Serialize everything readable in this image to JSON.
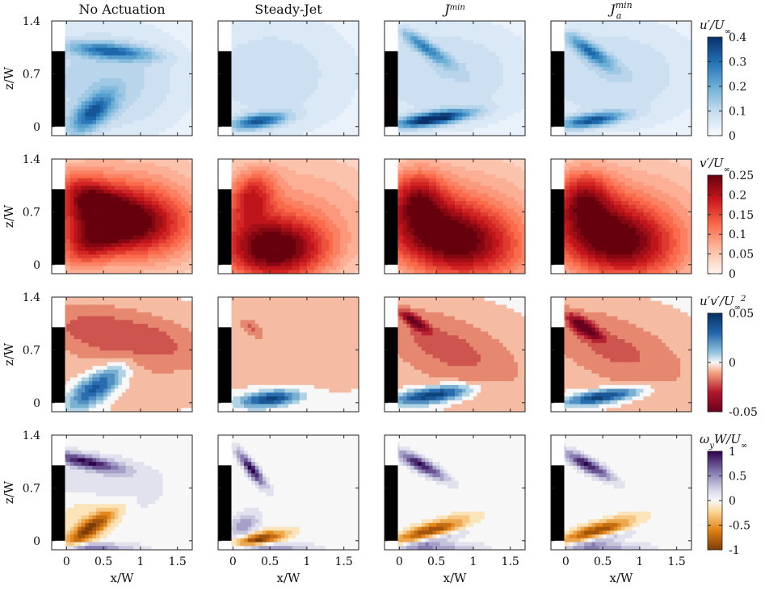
{
  "chart_data": {
    "type": "heatmap",
    "columns": [
      "No Actuation",
      "Steady-Jet",
      "J^min",
      "J_a^min"
    ],
    "column_titles": [
      {
        "text": "No Actuation"
      },
      {
        "text": "Steady-Jet"
      },
      {
        "base": "J",
        "sup": "min"
      },
      {
        "base": "J",
        "sup": "min",
        "sub": "a"
      }
    ],
    "xlabel": "x/W",
    "ylabel": "z/W",
    "xlim": [
      -0.2,
      1.7
    ],
    "ylim": [
      -0.12,
      1.4
    ],
    "xticks": [
      0,
      0.5,
      1,
      1.5
    ],
    "xtick_labels": [
      "0",
      "0.5",
      "1",
      "1.5"
    ],
    "yticks": [
      0,
      0.7,
      1.4
    ],
    "ytick_labels": [
      "0",
      "0.7",
      "1.4"
    ],
    "rows": [
      {
        "quantity": "u'/U_inf",
        "label": {
          "main": "u′/U",
          "sub": "∞"
        },
        "colormap": "blues",
        "clim": [
          0,
          0.4
        ],
        "cbar_ticks": [
          0,
          0.1,
          0.2,
          0.3,
          0.4
        ],
        "cbar_labels": [
          "0",
          "0.1",
          "0.2",
          "0.3",
          "0.4"
        ]
      },
      {
        "quantity": "v'/U_inf",
        "label": {
          "main": "v′/U",
          "sub": "∞"
        },
        "colormap": "reds",
        "clim": [
          0,
          0.25
        ],
        "cbar_ticks": [
          0,
          0.05,
          0.1,
          0.15,
          0.2,
          0.25
        ],
        "cbar_labels": [
          "0",
          "0.05",
          "0.1",
          "0.15",
          "0.2",
          "0.25"
        ]
      },
      {
        "quantity": "u'v'/U_inf^2",
        "label": {
          "main": "u′v′/U",
          "sub": "∞",
          "sup": "2"
        },
        "colormap": "red-blue diverging",
        "clim": [
          -0.05,
          0.05
        ],
        "cbar_ticks": [
          -0.05,
          0,
          0.05
        ],
        "cbar_labels": [
          "-0.05",
          "0",
          "0.05"
        ]
      },
      {
        "quantity": "omega_y W/U_inf",
        "label": {
          "main": "ω",
          "sub1": "y",
          "mid": "W/U",
          "sub": "∞"
        },
        "colormap": "orange-purple diverging",
        "clim": [
          -1,
          1
        ],
        "cbar_ticks": [
          -1,
          -0.5,
          0,
          0.5,
          1
        ],
        "cbar_labels": [
          "-1",
          "-0.5",
          "0",
          "0.5",
          "1"
        ]
      }
    ],
    "body": {
      "x": [
        -0.2,
        -0.02
      ],
      "z": [
        0,
        1.0
      ]
    },
    "features": [
      [
        [
          {
            "x": 0.6,
            "z": 1.0,
            "sx": 0.38,
            "sz": 0.07,
            "a": 0.24,
            "r": -0.1
          },
          {
            "x": 0.35,
            "z": 0.18,
            "sx": 0.25,
            "sz": 0.12,
            "a": 0.26,
            "r": 0.7
          },
          {
            "x": 0.5,
            "z": 0.6,
            "sx": 0.9,
            "sz": 0.6,
            "a": 0.12,
            "r": 0
          }
        ],
        [
          {
            "x": 0.35,
            "z": 0.07,
            "sx": 0.25,
            "sz": 0.065,
            "a": 0.3,
            "r": 0.15
          },
          {
            "x": 0.5,
            "z": 0.7,
            "sx": 1.0,
            "sz": 0.7,
            "a": 0.09,
            "r": 0
          }
        ],
        [
          {
            "x": 0.45,
            "z": 0.1,
            "sx": 0.35,
            "sz": 0.06,
            "a": 0.4,
            "r": 0.15
          },
          {
            "x": 0.35,
            "z": 1.05,
            "sx": 0.28,
            "sz": 0.06,
            "a": 0.2,
            "r": -0.6
          },
          {
            "x": 0.6,
            "z": 0.7,
            "sx": 1.0,
            "sz": 0.6,
            "a": 0.1,
            "r": 0
          }
        ],
        [
          {
            "x": 0.35,
            "z": 0.08,
            "sx": 0.3,
            "sz": 0.06,
            "a": 0.3,
            "r": 0.15
          },
          {
            "x": 0.32,
            "z": 1.0,
            "sx": 0.25,
            "sz": 0.07,
            "a": 0.23,
            "r": -0.6
          },
          {
            "x": 0.6,
            "z": 0.7,
            "sx": 1.0,
            "sz": 0.6,
            "a": 0.1,
            "r": 0
          }
        ]
      ],
      [
        [
          {
            "x": 0.75,
            "z": 0.58,
            "sx": 0.55,
            "sz": 0.3,
            "a": 0.2,
            "r": -0.1
          },
          {
            "x": 0.3,
            "z": 0.9,
            "sx": 0.3,
            "sz": 0.18,
            "a": 0.1,
            "r": -0.5
          },
          {
            "x": 0.3,
            "z": 0.25,
            "sx": 0.3,
            "sz": 0.18,
            "a": 0.09,
            "r": 0.5
          },
          {
            "x": 0.8,
            "z": 0.7,
            "sx": 1.2,
            "sz": 0.7,
            "a": 0.09,
            "r": 0
          }
        ],
        [
          {
            "x": 0.55,
            "z": 0.2,
            "sx": 0.5,
            "sz": 0.3,
            "a": 0.22,
            "r": 0
          },
          {
            "x": 0.25,
            "z": 0.9,
            "sx": 0.2,
            "sz": 0.25,
            "a": 0.12,
            "r": -0.6
          },
          {
            "x": 0.8,
            "z": 0.7,
            "sx": 1.2,
            "sz": 0.7,
            "a": 0.08,
            "r": 0
          }
        ],
        [
          {
            "x": 0.7,
            "z": 0.32,
            "sx": 0.65,
            "sz": 0.35,
            "a": 0.21,
            "r": -0.2
          },
          {
            "x": 0.25,
            "z": 0.9,
            "sx": 0.25,
            "sz": 0.25,
            "a": 0.12,
            "r": -0.6
          },
          {
            "x": 0.8,
            "z": 0.7,
            "sx": 1.2,
            "sz": 0.7,
            "a": 0.08,
            "r": 0
          }
        ],
        [
          {
            "x": 0.65,
            "z": 0.32,
            "sx": 0.6,
            "sz": 0.35,
            "a": 0.21,
            "r": -0.2
          },
          {
            "x": 0.25,
            "z": 0.9,
            "sx": 0.25,
            "sz": 0.25,
            "a": 0.12,
            "r": -0.6
          },
          {
            "x": 0.8,
            "z": 0.7,
            "sx": 1.2,
            "sz": 0.7,
            "a": 0.08,
            "r": 0
          }
        ]
      ],
      [
        [
          {
            "x": 0.7,
            "z": 0.9,
            "sx": 0.9,
            "sz": 0.25,
            "a": -0.018,
            "r": -0.2
          },
          {
            "x": 0.4,
            "z": 0.2,
            "sx": 0.3,
            "sz": 0.12,
            "a": 0.04,
            "r": 0.6
          },
          {
            "x": 0.8,
            "z": 0.6,
            "sx": 1.2,
            "sz": 0.7,
            "a": -0.007,
            "r": 0
          }
        ],
        [
          {
            "x": 0.5,
            "z": 0.05,
            "sx": 0.27,
            "sz": 0.07,
            "a": 0.045,
            "r": 0.1
          },
          {
            "x": 0.8,
            "z": 0.8,
            "sx": 1.2,
            "sz": 0.6,
            "a": -0.008,
            "r": 0
          },
          {
            "x": 0.25,
            "z": 1.0,
            "sx": 0.12,
            "sz": 0.06,
            "a": -0.012,
            "r": -0.6
          }
        ],
        [
          {
            "x": 0.45,
            "z": 0.1,
            "sx": 0.35,
            "sz": 0.07,
            "a": 0.05,
            "r": 0.15
          },
          {
            "x": 0.2,
            "z": 1.08,
            "sx": 0.15,
            "sz": 0.05,
            "a": -0.04,
            "r": -0.6
          },
          {
            "x": 0.6,
            "z": 0.75,
            "sx": 0.8,
            "sz": 0.3,
            "a": -0.015,
            "r": -0.4
          },
          {
            "x": 0.8,
            "z": 0.6,
            "sx": 1.2,
            "sz": 0.7,
            "a": -0.006,
            "r": 0
          }
        ],
        [
          {
            "x": 0.5,
            "z": 0.08,
            "sx": 0.35,
            "sz": 0.06,
            "a": 0.048,
            "r": 0.15
          },
          {
            "x": 0.25,
            "z": 1.0,
            "sx": 0.18,
            "sz": 0.06,
            "a": -0.045,
            "r": -0.6
          },
          {
            "x": 0.6,
            "z": 0.75,
            "sx": 0.8,
            "sz": 0.3,
            "a": -0.014,
            "r": -0.4
          },
          {
            "x": 0.8,
            "z": 0.6,
            "sx": 1.2,
            "sz": 0.7,
            "a": -0.006,
            "r": 0
          }
        ]
      ],
      [
        [
          {
            "x": 0.25,
            "z": 1.05,
            "sx": 0.35,
            "sz": 0.06,
            "a": 0.9,
            "r": -0.2
          },
          {
            "x": 0.3,
            "z": 0.15,
            "sx": 0.3,
            "sz": 0.08,
            "a": -0.9,
            "r": 0.6
          },
          {
            "x": 0.5,
            "z": 0.7,
            "sx": 0.6,
            "sz": 0.3,
            "a": 0.18,
            "r": 0
          },
          {
            "x": 0.3,
            "z": 0.35,
            "sx": 0.3,
            "sz": 0.2,
            "a": -0.25,
            "r": 0
          },
          {
            "x": 0.3,
            "z": -0.08,
            "sx": 0.4,
            "sz": 0.03,
            "a": 0.7,
            "r": 0
          }
        ],
        [
          {
            "x": 0.25,
            "z": 0.95,
            "sx": 0.2,
            "sz": 0.05,
            "a": 1.0,
            "r": -0.9
          },
          {
            "x": 0.35,
            "z": 0.02,
            "sx": 0.25,
            "sz": 0.06,
            "a": -1.0,
            "r": 0.2
          },
          {
            "x": 0.15,
            "z": 0.2,
            "sx": 0.15,
            "sz": 0.1,
            "a": 0.5,
            "r": 0.6
          },
          {
            "x": 0.45,
            "z": -0.08,
            "sx": 0.4,
            "sz": 0.03,
            "a": 0.6,
            "r": 0
          }
        ],
        [
          {
            "x": 0.3,
            "z": 1.0,
            "sx": 0.25,
            "sz": 0.06,
            "a": 0.95,
            "r": -0.5
          },
          {
            "x": 0.4,
            "z": 0.12,
            "sx": 0.35,
            "sz": 0.07,
            "a": -0.95,
            "r": 0.3
          },
          {
            "x": 0.4,
            "z": 0.0,
            "sx": 0.3,
            "sz": 0.05,
            "a": 0.5,
            "r": 0.2
          },
          {
            "x": 0.5,
            "z": -0.08,
            "sx": 0.4,
            "sz": 0.03,
            "a": 0.5,
            "r": 0
          }
        ],
        [
          {
            "x": 0.3,
            "z": 1.0,
            "sx": 0.25,
            "sz": 0.06,
            "a": 0.95,
            "r": -0.5
          },
          {
            "x": 0.4,
            "z": 0.12,
            "sx": 0.35,
            "sz": 0.07,
            "a": -0.95,
            "r": 0.3
          },
          {
            "x": 0.4,
            "z": 0.0,
            "sx": 0.3,
            "sz": 0.05,
            "a": 0.5,
            "r": 0.2
          },
          {
            "x": 0.5,
            "z": -0.08,
            "sx": 0.4,
            "sz": 0.03,
            "a": 0.5,
            "r": 0
          }
        ]
      ]
    ]
  }
}
